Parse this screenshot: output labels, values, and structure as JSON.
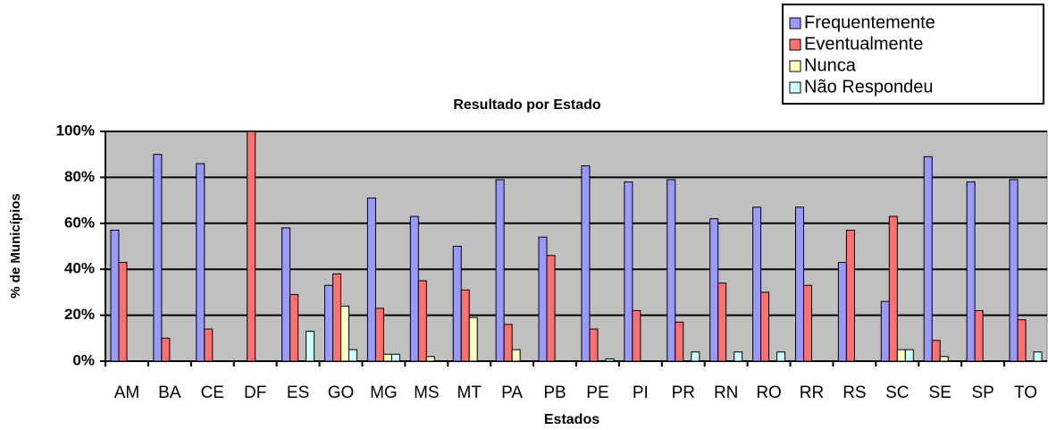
{
  "chart_data": {
    "type": "bar",
    "title": "Resultado por Estado",
    "x_label": "Estados",
    "y_label": "% de Municípios",
    "categories": [
      "AM",
      "BA",
      "CE",
      "DF",
      "ES",
      "GO",
      "MG",
      "MS",
      "MT",
      "PA",
      "PB",
      "PE",
      "PI",
      "PR",
      "RN",
      "RO",
      "RR",
      "RS",
      "SC",
      "SE",
      "SP",
      "TO"
    ],
    "series": [
      {
        "name": "Frequentemente",
        "color": "#9999ff",
        "values": [
          57,
          90,
          86,
          0,
          58,
          33,
          71,
          63,
          50,
          79,
          54,
          85,
          78,
          79,
          62,
          67,
          67,
          43,
          26,
          89,
          78,
          79
        ]
      },
      {
        "name": "Eventualmente",
        "color": "#ff7070",
        "values": [
          43,
          10,
          14,
          100,
          29,
          38,
          23,
          35,
          31,
          16,
          46,
          14,
          22,
          17,
          34,
          30,
          33,
          57,
          63,
          9,
          22,
          18
        ]
      },
      {
        "name": "Nunca",
        "color": "#ffffc0",
        "values": [
          0,
          0,
          0,
          0,
          0,
          24,
          3,
          2,
          19,
          5,
          0,
          0,
          0,
          0,
          0,
          0,
          0,
          0,
          5,
          2,
          0,
          0
        ]
      },
      {
        "name": "Não Respondeu",
        "color": "#ccffff",
        "values": [
          0,
          0,
          0,
          0,
          13,
          5,
          3,
          0,
          0,
          0,
          0,
          1,
          0,
          4,
          4,
          4,
          0,
          0,
          5,
          0,
          0,
          4
        ]
      }
    ],
    "ylim": [
      0,
      100
    ],
    "yticks": [
      {
        "value": 0,
        "label": "0%"
      },
      {
        "value": 20,
        "label": "20%"
      },
      {
        "value": 40,
        "label": "40%"
      },
      {
        "value": 60,
        "label": "60%"
      },
      {
        "value": 80,
        "label": "80%"
      },
      {
        "value": 100,
        "label": "100%"
      }
    ],
    "grid": true,
    "legend": "top-right",
    "plot_background": "#c0c0c0"
  }
}
